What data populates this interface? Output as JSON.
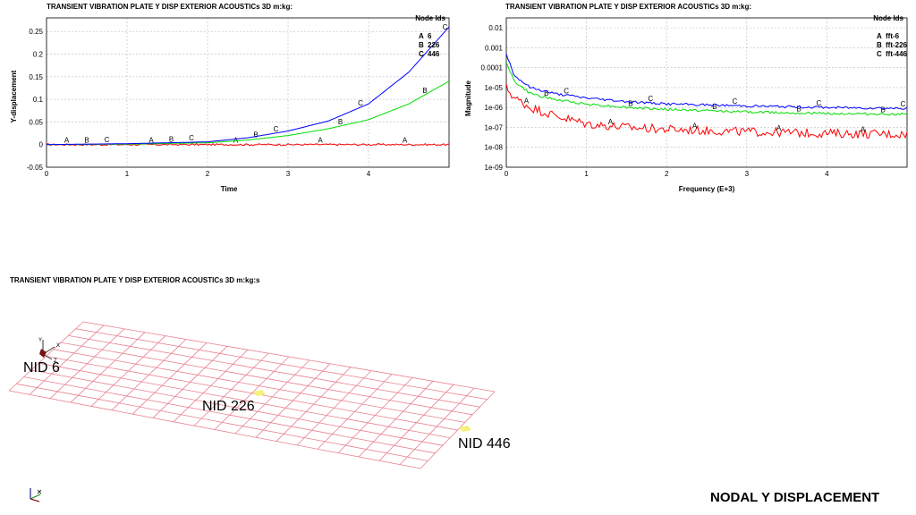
{
  "chart_data": [
    {
      "type": "line",
      "title": "TRANSIENT VIBRATION PLATE Y DISP EXTERIOR ACOUSTICs 3D m:kg:",
      "xlabel": "Time",
      "ylabel": "Y-displacement",
      "xlim": [
        0,
        5
      ],
      "ylim": [
        -0.05,
        0.28
      ],
      "xticks": [
        "0",
        "1",
        "2",
        "3",
        "4"
      ],
      "yticks": [
        "-0.05",
        "0",
        "0.05",
        "0.1",
        "0.15",
        "0.2",
        "0.25"
      ],
      "grid": true,
      "legend_title": "Node Ids",
      "legend_position": "top-right",
      "series": [
        {
          "marker": "A",
          "name": "6",
          "color": "#ff0000",
          "x": [
            0,
            1,
            2,
            3,
            4,
            5
          ],
          "y": [
            0,
            0,
            0,
            0,
            0,
            0
          ]
        },
        {
          "marker": "B",
          "name": "226",
          "color": "#00dd00",
          "x": [
            0,
            1,
            2,
            2.5,
            3,
            3.5,
            4,
            4.5,
            5
          ],
          "y": [
            0,
            0.001,
            0.004,
            0.01,
            0.02,
            0.035,
            0.055,
            0.09,
            0.14
          ]
        },
        {
          "marker": "C",
          "name": "446",
          "color": "#0000ff",
          "x": [
            0,
            1,
            2,
            2.5,
            3,
            3.5,
            4,
            4.5,
            5
          ],
          "y": [
            0,
            0.002,
            0.006,
            0.015,
            0.03,
            0.052,
            0.09,
            0.16,
            0.26
          ]
        }
      ]
    },
    {
      "type": "line",
      "title": "TRANSIENT VIBRATION PLATE Y DISP EXTERIOR ACOUSTICs 3D m:kg:",
      "xlabel": "Frequency (E+3)",
      "ylabel": "Magnitude",
      "xlim": [
        0,
        5
      ],
      "ylim_log10": [
        -9,
        -1.5
      ],
      "xticks": [
        "0",
        "1",
        "2",
        "3",
        "4"
      ],
      "yticks": [
        "0.01",
        "0.001",
        "0.0001",
        "1e-05",
        "1e-06",
        "1e-07",
        "1e-08",
        "1e-09"
      ],
      "grid": true,
      "legend_title": "Node Ids",
      "legend_position": "top-right",
      "series": [
        {
          "marker": "A",
          "name": "fft-6",
          "color": "#ff0000",
          "x": [
            0,
            0.1,
            0.3,
            0.6,
            1,
            1.5,
            2,
            3,
            4,
            5
          ],
          "y": [
            1e-05,
            3e-06,
            1e-06,
            4e-07,
            1.5e-07,
            1e-07,
            8e-08,
            6e-08,
            5e-08,
            4.5e-08
          ]
        },
        {
          "marker": "B",
          "name": "fft-226",
          "color": "#00dd00",
          "x": [
            0,
            0.1,
            0.3,
            0.6,
            1,
            1.5,
            2,
            3,
            4,
            5
          ],
          "y": [
            0.0002,
            2e-05,
            5e-06,
            2.5e-06,
            1.5e-06,
            1e-06,
            8e-07,
            6e-07,
            5e-07,
            4.5e-07
          ]
        },
        {
          "marker": "C",
          "name": "fft-446",
          "color": "#0000ff",
          "x": [
            0,
            0.1,
            0.3,
            0.6,
            1,
            1.5,
            2,
            3,
            4,
            5
          ],
          "y": [
            0.0005,
            4e-05,
            1e-05,
            5e-06,
            3e-06,
            2e-06,
            1.5e-06,
            1.2e-06,
            1e-06,
            9e-07
          ]
        }
      ]
    }
  ],
  "view": {
    "title": "TRANSIENT VIBRATION PLATE Y DISP EXTERIOR ACOUSTICs 3D m:kg:s",
    "axis_labels": {
      "y": "Y",
      "x": "X",
      "z": "Z"
    },
    "labels": {
      "nid6": "NID 6",
      "nid226": "NID 226",
      "nid446": "NID 446"
    }
  },
  "footer": {
    "title": "NODAL Y DISPLACEMENT"
  },
  "colors": {
    "mesh": "#e8828e",
    "node_highlight": "#f5f07a"
  }
}
